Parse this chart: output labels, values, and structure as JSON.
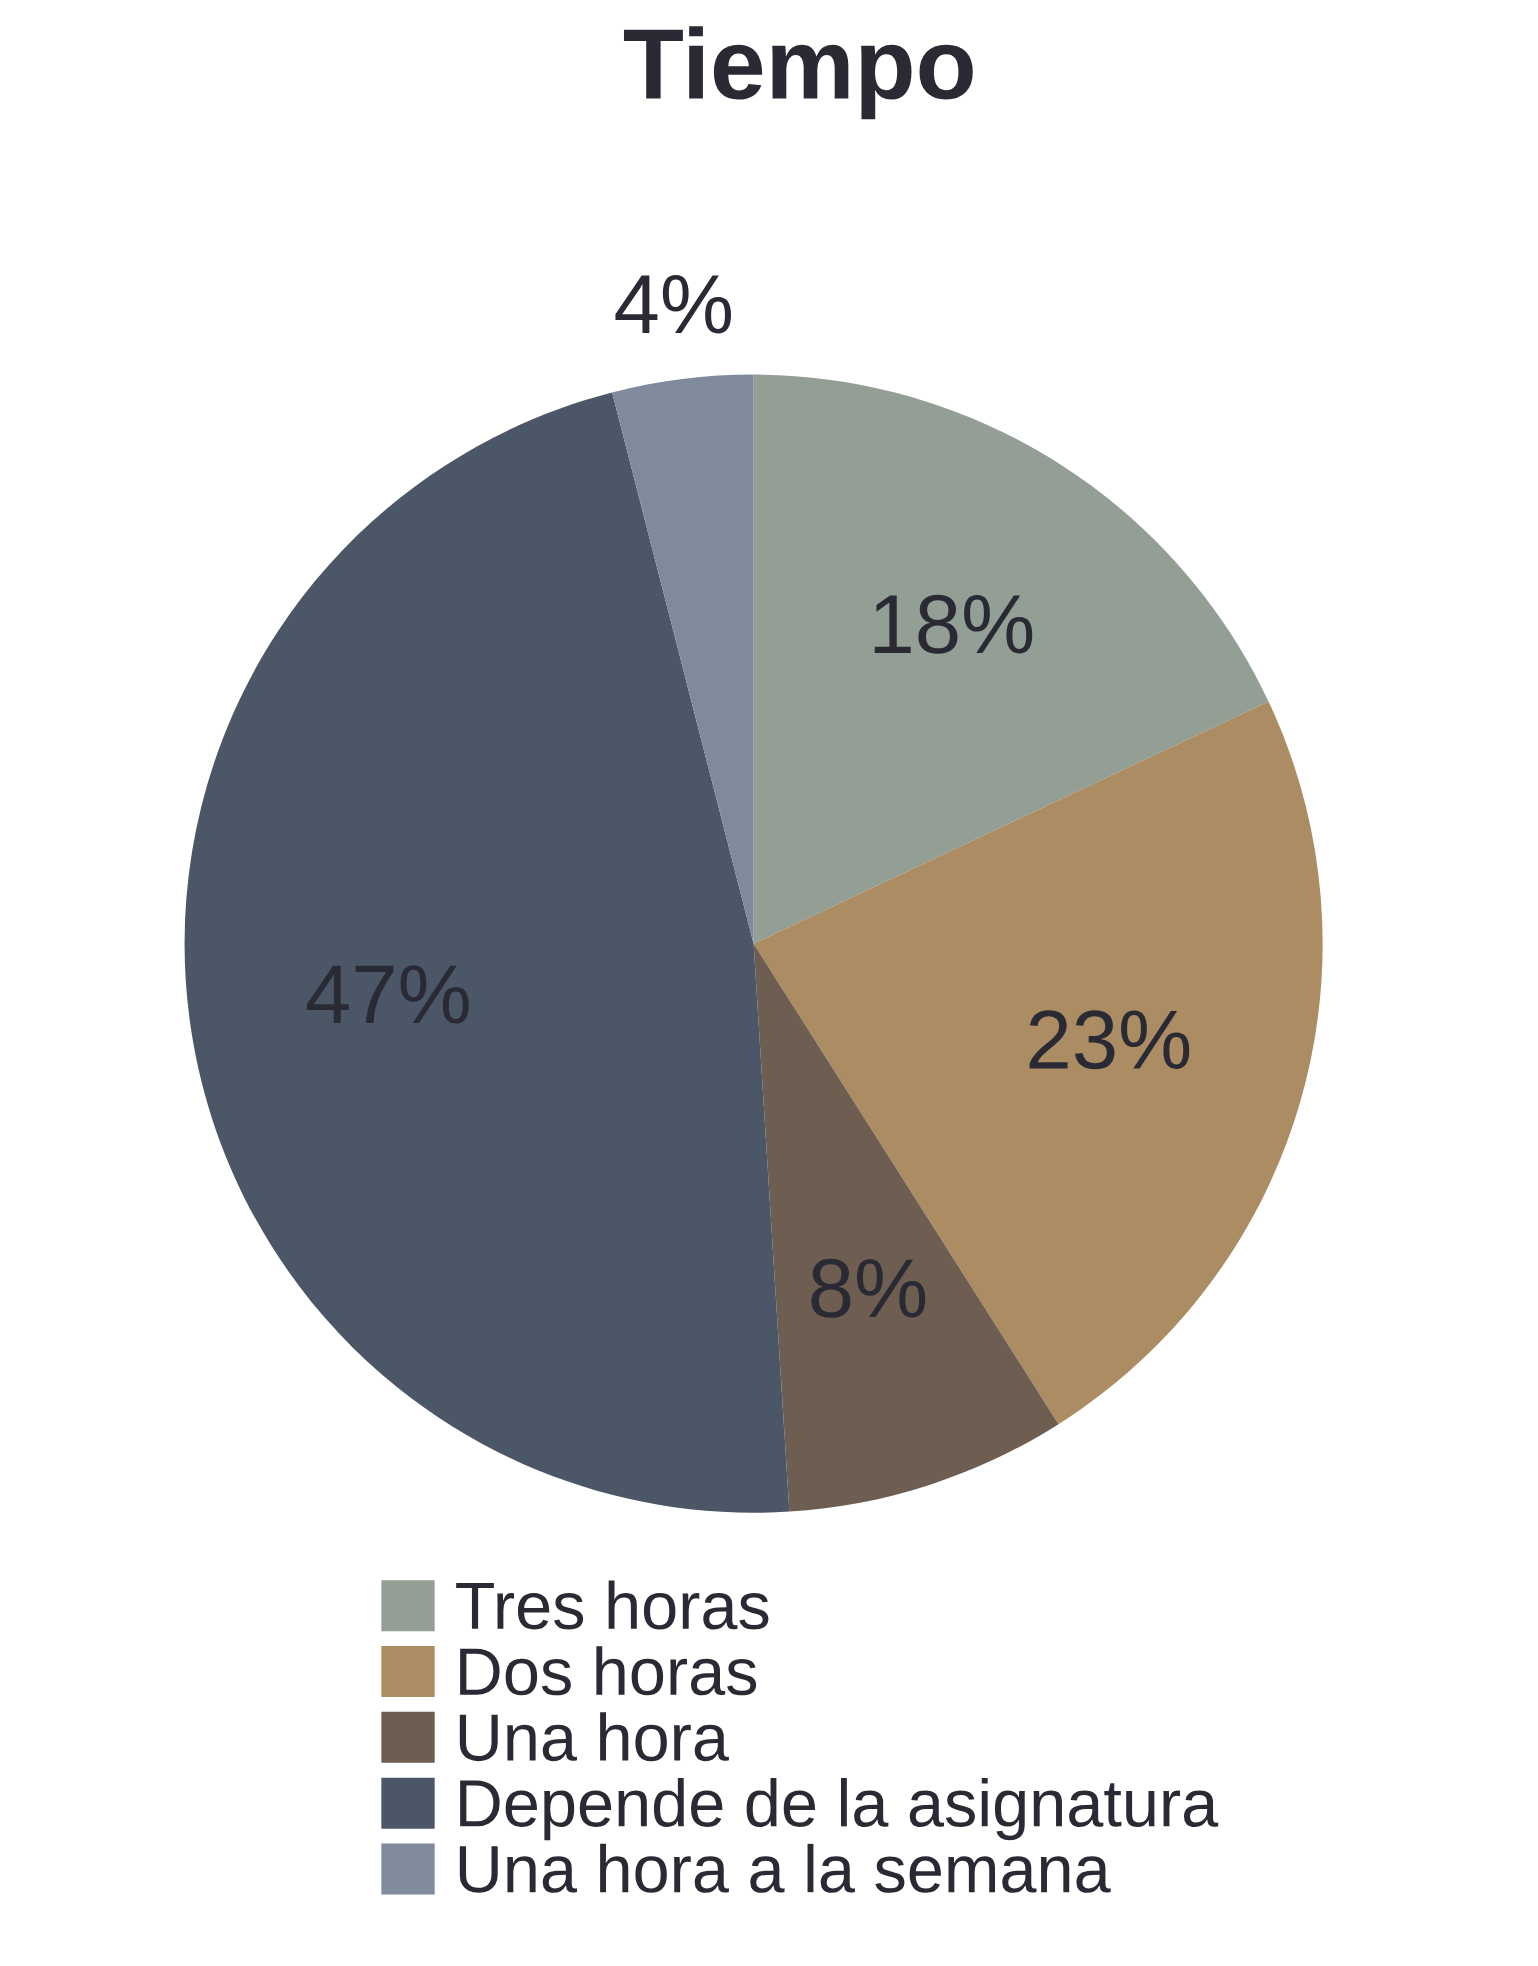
{
  "chart_data": {
    "type": "pie",
    "title": "Tiempo",
    "categories": [
      "Tres horas",
      "Dos horas",
      "Una hora",
      "Depende de la asignatura",
      "Una hora a la semana"
    ],
    "values": [
      18,
      23,
      8,
      47,
      4
    ],
    "value_labels": [
      "18%",
      "23%",
      "8%",
      "47%",
      "4%"
    ],
    "colors": [
      "#939f95",
      "#ab8c63",
      "#6e5e52",
      "#4b5767",
      "#7f8a9c"
    ],
    "legend": "bottom"
  }
}
